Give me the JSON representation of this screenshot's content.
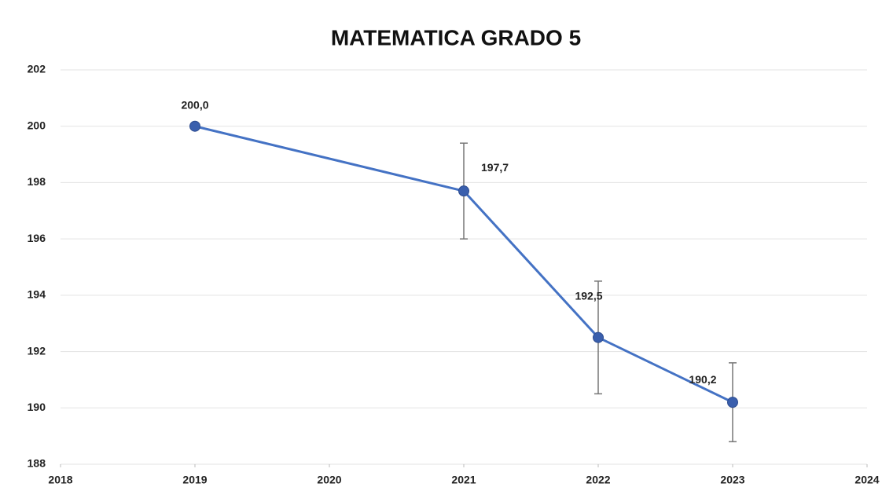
{
  "chart_data": {
    "type": "line",
    "title": "MATEMATICA GRADO 5",
    "x": [
      2019,
      2021,
      2022,
      2023
    ],
    "values": [
      200.0,
      197.7,
      192.5,
      190.2
    ],
    "value_labels": [
      "200,0",
      "197,7",
      "192,5",
      "190,2"
    ],
    "errors": [
      null,
      1.7,
      2.0,
      1.4
    ],
    "color": "#4472c4",
    "xlim": [
      2018,
      2024
    ],
    "xticks": [
      2018,
      2019,
      2020,
      2021,
      2022,
      2023,
      2024
    ],
    "ylim": [
      188,
      202
    ],
    "yticks": [
      188,
      190,
      192,
      194,
      196,
      198,
      200,
      202
    ],
    "grid": true
  }
}
